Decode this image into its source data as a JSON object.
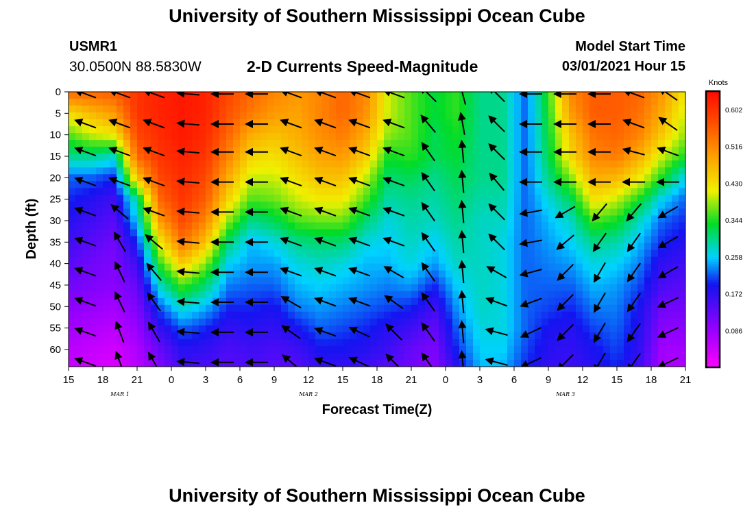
{
  "header": {
    "title": "University of Southern Mississippi Ocean Cube",
    "station_id": "USMR1",
    "station_coords": "30.0500N 88.5830W",
    "plot_title": "2-D Currents Speed-Magnitude",
    "model_start_label": "Model Start Time",
    "model_start_value": "03/01/2021 Hour 15"
  },
  "footer": {
    "title": "University of Southern Mississippi Ocean Cube"
  },
  "chart_data": {
    "type": "heatmap",
    "title": "2-D Currents Speed-Magnitude",
    "xlabel": "Forecast Time(Z)",
    "ylabel": "Depth (ft)",
    "xlim": [
      0,
      54
    ],
    "ylim": [
      0,
      64
    ],
    "x_ticks": [
      0,
      3,
      6,
      9,
      12,
      15,
      18,
      21,
      24,
      27,
      30,
      33,
      36,
      39,
      42,
      45,
      48,
      51,
      54
    ],
    "x_tick_labels": [
      "15",
      "18",
      "21",
      "0",
      "3",
      "6",
      "9",
      "12",
      "15",
      "18",
      "21",
      "0",
      "3",
      "6",
      "9",
      "12",
      "15",
      "18",
      "21"
    ],
    "day_labels": [
      {
        "text": "MAR 1",
        "x": 4.5
      },
      {
        "text": "MAR 2",
        "x": 21
      },
      {
        "text": "MAR 3",
        "x": 43.5
      }
    ],
    "y_ticks": [
      0,
      5,
      10,
      15,
      20,
      25,
      30,
      35,
      40,
      45,
      50,
      55,
      60
    ],
    "colorbar": {
      "label": "Knots",
      "min": 0,
      "max": 0.645,
      "ticks": [
        0.602,
        0.516,
        0.43,
        0.344,
        0.258,
        0.172,
        0.086
      ],
      "tick_labels": [
        "0.602",
        "0.516",
        "0.430",
        "0.344",
        "0.258",
        "0.172",
        "0.086"
      ]
    },
    "speed_grid": {
      "x": [
        0,
        2,
        4,
        6,
        8,
        10,
        12,
        14,
        16,
        18,
        20,
        22,
        24,
        26,
        28,
        30,
        32,
        34,
        36,
        38,
        40,
        42,
        44,
        46,
        48,
        50,
        52,
        54
      ],
      "depth": [
        0,
        5,
        10,
        15,
        20,
        25,
        30,
        35,
        40,
        45,
        50,
        55,
        60,
        64
      ],
      "values": [
        [
          0.55,
          0.55,
          0.56,
          0.6,
          0.62,
          0.63,
          0.62,
          0.58,
          0.55,
          0.52,
          0.5,
          0.52,
          0.55,
          0.52,
          0.4,
          0.36,
          0.33,
          0.35,
          0.3,
          0.3,
          0.22,
          0.35,
          0.52,
          0.56,
          0.56,
          0.55,
          0.5,
          0.42
        ],
        [
          0.43,
          0.47,
          0.5,
          0.6,
          0.62,
          0.63,
          0.62,
          0.57,
          0.53,
          0.5,
          0.49,
          0.52,
          0.55,
          0.51,
          0.4,
          0.36,
          0.33,
          0.35,
          0.3,
          0.3,
          0.22,
          0.34,
          0.5,
          0.56,
          0.56,
          0.54,
          0.48,
          0.4
        ],
        [
          0.36,
          0.4,
          0.42,
          0.58,
          0.61,
          0.63,
          0.61,
          0.55,
          0.48,
          0.46,
          0.48,
          0.51,
          0.53,
          0.48,
          0.38,
          0.36,
          0.32,
          0.34,
          0.3,
          0.3,
          0.22,
          0.33,
          0.46,
          0.54,
          0.55,
          0.52,
          0.45,
          0.38
        ],
        [
          0.3,
          0.3,
          0.28,
          0.55,
          0.6,
          0.62,
          0.6,
          0.52,
          0.44,
          0.43,
          0.46,
          0.49,
          0.5,
          0.45,
          0.34,
          0.35,
          0.32,
          0.33,
          0.3,
          0.3,
          0.22,
          0.32,
          0.44,
          0.52,
          0.53,
          0.48,
          0.4,
          0.34
        ],
        [
          0.22,
          0.22,
          0.2,
          0.46,
          0.58,
          0.61,
          0.58,
          0.48,
          0.4,
          0.4,
          0.43,
          0.46,
          0.46,
          0.4,
          0.31,
          0.32,
          0.3,
          0.32,
          0.3,
          0.3,
          0.22,
          0.3,
          0.38,
          0.48,
          0.47,
          0.42,
          0.34,
          0.26
        ],
        [
          0.2,
          0.18,
          0.16,
          0.3,
          0.55,
          0.6,
          0.56,
          0.44,
          0.36,
          0.37,
          0.4,
          0.42,
          0.42,
          0.36,
          0.29,
          0.3,
          0.29,
          0.31,
          0.29,
          0.29,
          0.22,
          0.27,
          0.32,
          0.43,
          0.4,
          0.34,
          0.26,
          0.22
        ],
        [
          0.18,
          0.16,
          0.14,
          0.26,
          0.5,
          0.58,
          0.52,
          0.38,
          0.3,
          0.32,
          0.36,
          0.37,
          0.37,
          0.31,
          0.27,
          0.29,
          0.28,
          0.3,
          0.28,
          0.28,
          0.22,
          0.25,
          0.28,
          0.36,
          0.34,
          0.28,
          0.22,
          0.2
        ],
        [
          0.16,
          0.14,
          0.12,
          0.2,
          0.42,
          0.54,
          0.46,
          0.31,
          0.25,
          0.27,
          0.3,
          0.31,
          0.31,
          0.27,
          0.26,
          0.28,
          0.26,
          0.29,
          0.28,
          0.27,
          0.22,
          0.24,
          0.26,
          0.3,
          0.29,
          0.25,
          0.2,
          0.18
        ],
        [
          0.14,
          0.12,
          0.11,
          0.16,
          0.35,
          0.45,
          0.38,
          0.26,
          0.24,
          0.24,
          0.27,
          0.28,
          0.27,
          0.25,
          0.25,
          0.27,
          0.24,
          0.28,
          0.28,
          0.27,
          0.22,
          0.23,
          0.24,
          0.27,
          0.26,
          0.23,
          0.17,
          0.16
        ],
        [
          0.12,
          0.11,
          0.1,
          0.13,
          0.28,
          0.36,
          0.31,
          0.23,
          0.22,
          0.22,
          0.25,
          0.26,
          0.25,
          0.24,
          0.23,
          0.24,
          0.2,
          0.26,
          0.28,
          0.27,
          0.22,
          0.22,
          0.22,
          0.25,
          0.24,
          0.21,
          0.15,
          0.14
        ],
        [
          0.1,
          0.09,
          0.08,
          0.11,
          0.22,
          0.28,
          0.25,
          0.2,
          0.2,
          0.19,
          0.23,
          0.24,
          0.23,
          0.22,
          0.21,
          0.2,
          0.16,
          0.24,
          0.28,
          0.27,
          0.22,
          0.21,
          0.2,
          0.23,
          0.23,
          0.19,
          0.12,
          0.12
        ],
        [
          0.08,
          0.07,
          0.06,
          0.09,
          0.17,
          0.22,
          0.2,
          0.17,
          0.18,
          0.17,
          0.19,
          0.22,
          0.21,
          0.2,
          0.18,
          0.16,
          0.13,
          0.22,
          0.27,
          0.27,
          0.22,
          0.19,
          0.18,
          0.21,
          0.22,
          0.18,
          0.1,
          0.1
        ],
        [
          0.06,
          0.05,
          0.04,
          0.07,
          0.13,
          0.18,
          0.17,
          0.15,
          0.16,
          0.15,
          0.16,
          0.19,
          0.19,
          0.18,
          0.16,
          0.13,
          0.11,
          0.2,
          0.26,
          0.26,
          0.21,
          0.18,
          0.17,
          0.19,
          0.21,
          0.17,
          0.08,
          0.08
        ],
        [
          0.05,
          0.04,
          0.03,
          0.06,
          0.11,
          0.16,
          0.15,
          0.14,
          0.15,
          0.14,
          0.14,
          0.17,
          0.17,
          0.16,
          0.14,
          0.12,
          0.1,
          0.18,
          0.25,
          0.25,
          0.2,
          0.17,
          0.16,
          0.18,
          0.2,
          0.16,
          0.07,
          0.07
        ]
      ]
    },
    "vectors": {
      "x": [
        1.5,
        4.5,
        7.5,
        10.5,
        13.5,
        16.5,
        19.5,
        22.5,
        25.5,
        28.5,
        31.5,
        34.5,
        37.5,
        40.5,
        43.5,
        46.5,
        49.5,
        52.5
      ],
      "depth": [
        0.5,
        7.5,
        14,
        21,
        28,
        35,
        42,
        49,
        56,
        63
      ],
      "direction_deg": [
        [
          200,
          200,
          200,
          185,
          180,
          180,
          200,
          200,
          200,
          200,
          225,
          255,
          225,
          180,
          180,
          180,
          200,
          215
        ],
        [
          200,
          200,
          200,
          185,
          180,
          180,
          200,
          200,
          200,
          200,
          230,
          260,
          225,
          180,
          180,
          180,
          200,
          215
        ],
        [
          200,
          200,
          200,
          185,
          180,
          180,
          200,
          200,
          200,
          200,
          235,
          265,
          225,
          180,
          180,
          180,
          195,
          200
        ],
        [
          200,
          200,
          200,
          185,
          180,
          180,
          200,
          200,
          200,
          200,
          235,
          265,
          230,
          180,
          180,
          180,
          180,
          180
        ],
        [
          200,
          220,
          200,
          185,
          180,
          180,
          200,
          200,
          200,
          200,
          235,
          265,
          225,
          170,
          150,
          130,
          130,
          150
        ],
        [
          200,
          240,
          220,
          185,
          180,
          180,
          200,
          200,
          200,
          200,
          235,
          265,
          225,
          170,
          140,
          125,
          125,
          150
        ],
        [
          200,
          245,
          230,
          185,
          180,
          180,
          200,
          200,
          200,
          210,
          235,
          265,
          210,
          165,
          135,
          120,
          125,
          150
        ],
        [
          200,
          245,
          235,
          185,
          180,
          180,
          210,
          200,
          200,
          215,
          235,
          265,
          200,
          160,
          135,
          120,
          125,
          155
        ],
        [
          200,
          250,
          240,
          185,
          180,
          180,
          215,
          200,
          205,
          225,
          235,
          265,
          195,
          155,
          135,
          120,
          125,
          155
        ],
        [
          200,
          250,
          240,
          185,
          180,
          180,
          220,
          200,
          205,
          225,
          235,
          265,
          195,
          155,
          135,
          120,
          125,
          155
        ]
      ]
    }
  }
}
